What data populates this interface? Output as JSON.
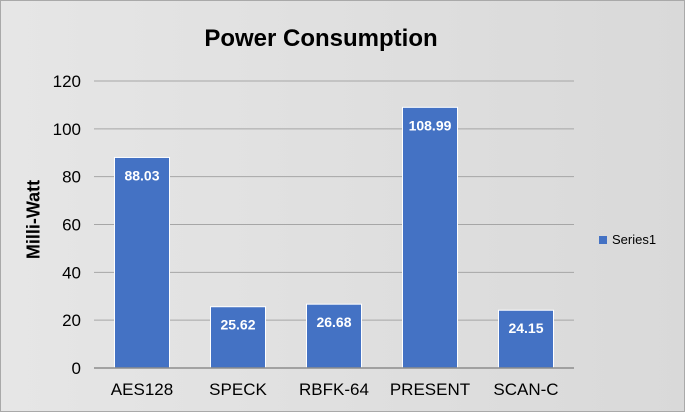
{
  "chart_data": {
    "type": "bar",
    "title": "Power Consumption",
    "ylabel": "Milli-Watt",
    "xlabel": "",
    "categories": [
      "AES128",
      "SPECK",
      "RBFK-64",
      "PRESENT",
      "SCAN-C"
    ],
    "series": [
      {
        "name": "Series1",
        "values": [
          88.03,
          25.62,
          26.68,
          108.99,
          24.15
        ]
      }
    ],
    "data_labels": [
      "88.03",
      "25.62",
      "26.68",
      "108.99",
      "24.15"
    ],
    "ylim": [
      0,
      120
    ],
    "yticks": [
      "0",
      "20",
      "40",
      "60",
      "80",
      "100",
      "120"
    ],
    "grid": true,
    "legend_position": "right",
    "colors": {
      "bar": "#4472c4",
      "grid": "#a6a6a6",
      "data_label": "#ffffff"
    }
  }
}
